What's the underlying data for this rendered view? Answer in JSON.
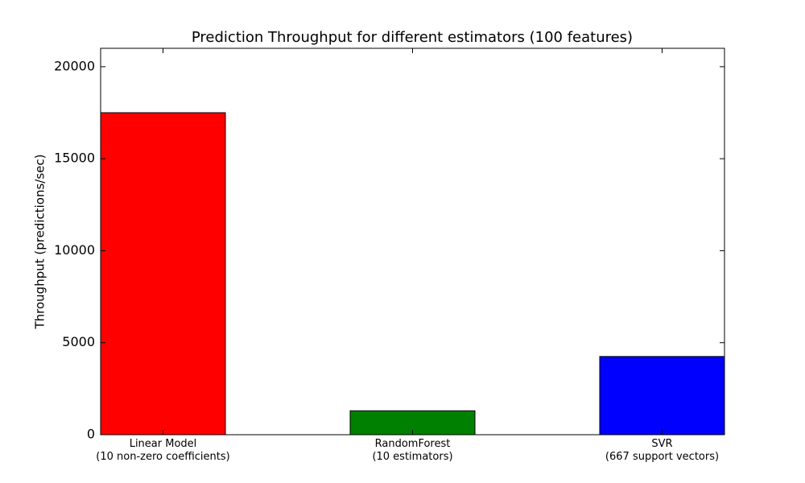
{
  "chart_data": {
    "type": "bar",
    "title": "Prediction Throughput for different estimators (100 features)",
    "y_label": "Throughput (predictions/sec)",
    "categories": [
      "Linear Model\n(10 non-zero coefficients)",
      "RandomForest\n(10 estimators)",
      "SVR\n(667 support vectors)"
    ],
    "values": [
      17500,
      1300,
      4250
    ],
    "colors": [
      "#ff0000",
      "#008000",
      "#0000ff"
    ],
    "ylim": [
      0,
      21000
    ],
    "yticks": [
      0,
      5000,
      10000,
      15000,
      20000
    ]
  }
}
